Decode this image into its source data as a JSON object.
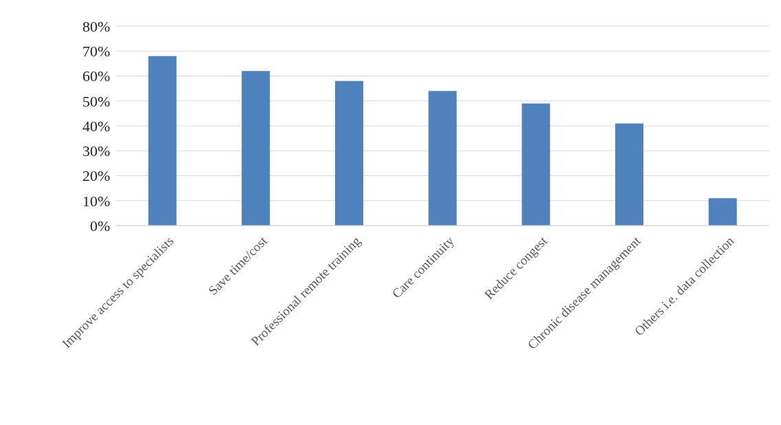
{
  "chart_data": {
    "type": "bar",
    "categories": [
      "Improve access to specialists",
      "Save time/cost",
      "Professional remote training",
      "Care continuity",
      "Reduce congest",
      "Chronic disease management",
      "Others i.e. data collection"
    ],
    "values": [
      68,
      62,
      58,
      54,
      49,
      41,
      11
    ],
    "color": "#4f81bd",
    "ylim": [
      0,
      80
    ],
    "yticks": [
      {
        "value": 0,
        "label": "0%"
      },
      {
        "value": 10,
        "label": "10%"
      },
      {
        "value": 20,
        "label": "20%"
      },
      {
        "value": 30,
        "label": "30%"
      },
      {
        "value": 40,
        "label": "40%"
      },
      {
        "value": 50,
        "label": "50%"
      },
      {
        "value": 60,
        "label": "60%"
      },
      {
        "value": 70,
        "label": "70%"
      },
      {
        "value": 80,
        "label": "80%"
      }
    ],
    "grid": "y"
  }
}
